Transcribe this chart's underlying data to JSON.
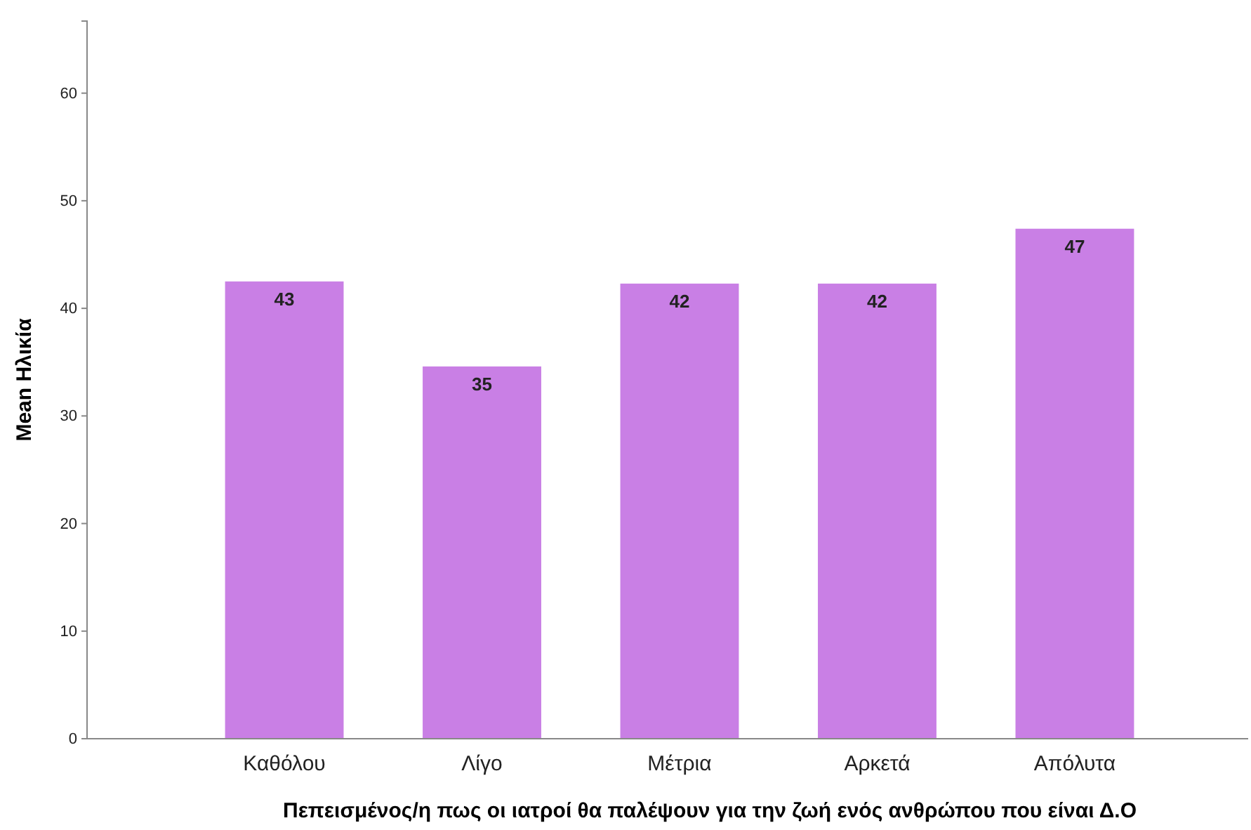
{
  "chart_data": {
    "type": "bar",
    "categories": [
      "Καθόλου",
      "Λίγο",
      "Μέτρια",
      "Αρκετά",
      "Απόλυτα"
    ],
    "values": [
      42.5,
      34.6,
      42.3,
      42.3,
      47.4
    ],
    "value_labels": [
      "43",
      "35",
      "42",
      "42",
      "47"
    ],
    "color": "#c97fe5",
    "ylim": [
      0,
      66.7
    ],
    "yticks": [
      0,
      10,
      20,
      30,
      40,
      50,
      60
    ],
    "xlabel": "Πεπεισμένος/η πως οι ιατροί θα παλέψουν για την ζωή ενός ανθρώπου που είναι Δ.Ο",
    "ylabel": "Mean Ηλικία"
  }
}
